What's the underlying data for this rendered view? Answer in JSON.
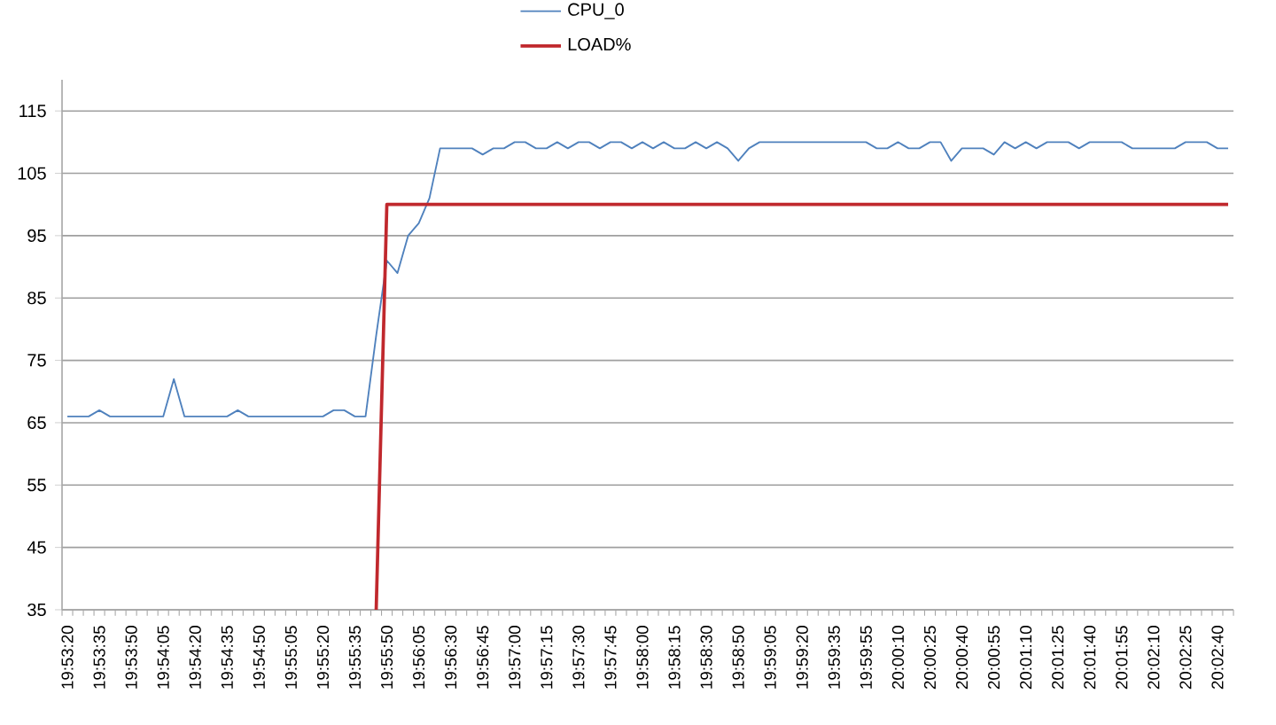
{
  "chart_data": {
    "type": "line",
    "categories": [
      "19:53:20",
      null,
      null,
      "19:53:35",
      null,
      null,
      "19:53:50",
      null,
      null,
      "19:54:05",
      null,
      null,
      "19:54:20",
      null,
      null,
      "19:54:35",
      null,
      null,
      "19:54:50",
      null,
      null,
      "19:55:05",
      null,
      null,
      "19:55:20",
      null,
      null,
      "19:55:35",
      null,
      null,
      "19:55:50",
      null,
      null,
      "19:56:05",
      null,
      null,
      "19:56:30",
      null,
      null,
      "19:56:45",
      null,
      null,
      "19:57:00",
      null,
      null,
      "19:57:15",
      null,
      null,
      "19:57:30",
      null,
      null,
      "19:57:45",
      null,
      null,
      "19:58:00",
      null,
      null,
      "19:58:15",
      null,
      null,
      "19:58:30",
      null,
      null,
      "19:58:50",
      null,
      null,
      "19:59:05",
      null,
      null,
      "19:59:20",
      null,
      null,
      "19:59:35",
      null,
      null,
      "19:59:55",
      null,
      null,
      "20:00:10",
      null,
      null,
      "20:00:25",
      null,
      null,
      "20:00:40",
      null,
      null,
      "20:00:55",
      null,
      null,
      "20:01:10",
      null,
      null,
      "20:01:25",
      null,
      null,
      "20:01:40",
      null,
      null,
      "20:01:55",
      null,
      null,
      "20:02:10",
      null,
      null,
      "20:02:25",
      null,
      null,
      "20:02:40",
      null
    ],
    "series": [
      {
        "name": "CPU_0",
        "color": "#4f81bd",
        "values": [
          66,
          66,
          66,
          67,
          66,
          66,
          66,
          66,
          66,
          66,
          72,
          66,
          66,
          66,
          66,
          66,
          67,
          66,
          66,
          66,
          66,
          66,
          66,
          66,
          66,
          67,
          67,
          66,
          66,
          79,
          91,
          89,
          95,
          97,
          101,
          109,
          109,
          109,
          109,
          108,
          109,
          109,
          110,
          110,
          109,
          109,
          110,
          109,
          110,
          110,
          109,
          110,
          110,
          109,
          110,
          109,
          110,
          109,
          109,
          110,
          109,
          110,
          109,
          107,
          109,
          110,
          110,
          110,
          110,
          110,
          110,
          110,
          110,
          110,
          110,
          110,
          109,
          109,
          110,
          109,
          109,
          110,
          110,
          107,
          109,
          109,
          109,
          108,
          110,
          109,
          110,
          109,
          110,
          110,
          110,
          109,
          110,
          110,
          110,
          110,
          109,
          109,
          109,
          109,
          109,
          110,
          110,
          110,
          109,
          109
        ]
      },
      {
        "name": "LOAD%",
        "color": "#c0282d",
        "values": [
          null,
          null,
          null,
          null,
          null,
          null,
          null,
          null,
          null,
          null,
          null,
          null,
          null,
          null,
          null,
          null,
          null,
          null,
          null,
          null,
          null,
          null,
          null,
          null,
          null,
          null,
          null,
          null,
          null,
          35,
          100,
          100,
          100,
          100,
          100,
          100,
          100,
          100,
          100,
          100,
          100,
          100,
          100,
          100,
          100,
          100,
          100,
          100,
          100,
          100,
          100,
          100,
          100,
          100,
          100,
          100,
          100,
          100,
          100,
          100,
          100,
          100,
          100,
          100,
          100,
          100,
          100,
          100,
          100,
          100,
          100,
          100,
          100,
          100,
          100,
          100,
          100,
          100,
          100,
          100,
          100,
          100,
          100,
          100,
          100,
          100,
          100,
          100,
          100,
          100,
          100,
          100,
          100,
          100,
          100,
          100,
          100,
          100,
          100,
          100,
          100,
          100,
          100,
          100,
          100,
          100,
          100,
          100,
          100,
          100
        ]
      }
    ],
    "ylim": [
      35,
      120
    ],
    "yticks": [
      35,
      45,
      55,
      65,
      75,
      85,
      95,
      105,
      115
    ],
    "grid": "y",
    "legend": "top",
    "marker": "none",
    "line_style": "solid"
  }
}
